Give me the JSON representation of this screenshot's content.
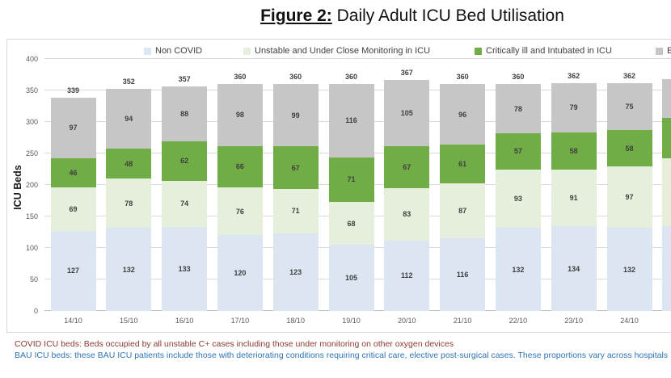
{
  "page": {
    "title_prefix": "Figure 2:",
    "title_rest": " Daily Adult ICU Bed Utilisation"
  },
  "footnotes": [
    {
      "text": "COVID ICU beds: Beds occupied by all unstable C+ cases including those under monitoring on other oxygen devices",
      "color": "#8a3a32"
    },
    {
      "text": "BAU ICU beds: these BAU ICU patients include those with deteriorating conditions requiring critical care, elective post-surgical cases. These proportions vary across hospitals",
      "color": "#2e75b6"
    }
  ],
  "chart_data": {
    "type": "bar",
    "stacked": true,
    "title": "Daily Adult ICU Bed Utilisation",
    "ylabel": "ICU Beds",
    "ylim": [
      0,
      400
    ],
    "ytick_step": 50,
    "grid": "horizontal",
    "legend_position": "top",
    "categories": [
      "14/10",
      "15/10",
      "16/10",
      "17/10",
      "18/10",
      "19/10",
      "20/10",
      "21/10",
      "22/10",
      "23/10",
      "24/10"
    ],
    "series": [
      {
        "name": "Non COVID",
        "color": "#dbe6f2",
        "values": [
          127,
          132,
          133,
          120,
          123,
          105,
          112,
          116,
          132,
          134,
          132
        ]
      },
      {
        "name": "Unstable and Under Close Monitoring in ICU",
        "color": "#e6efdc",
        "values": [
          69,
          78,
          74,
          76,
          71,
          68,
          83,
          87,
          93,
          91,
          97
        ]
      },
      {
        "name": "Critically ill and Intubated in ICU",
        "color": "#70ad47",
        "values": [
          46,
          48,
          62,
          66,
          67,
          71,
          67,
          61,
          57,
          58,
          58
        ]
      },
      {
        "name": "E",
        "color": "#c6c6c6",
        "values": [
          97,
          94,
          88,
          98,
          99,
          116,
          105,
          96,
          78,
          79,
          75
        ]
      }
    ],
    "totals": [
      339,
      352,
      357,
      360,
      360,
      360,
      367,
      360,
      360,
      362,
      362
    ],
    "partial_bar": {
      "note": "12th bar clipped at right edge, no labels visible",
      "values": [
        135,
        107,
        64,
        62
      ]
    }
  }
}
